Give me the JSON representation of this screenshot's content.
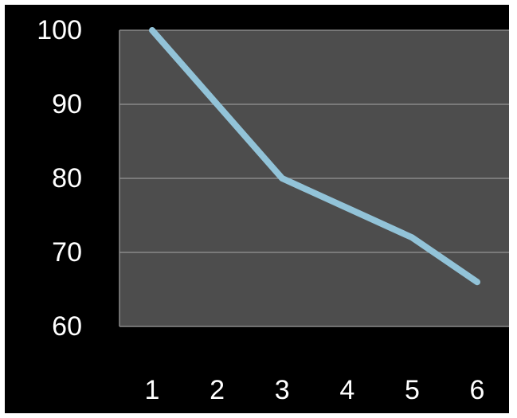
{
  "chart_data": {
    "type": "line",
    "title": "",
    "xlabel": "",
    "ylabel": "",
    "x": [
      1,
      2,
      3,
      4,
      5,
      6
    ],
    "x_tick_labels": [
      "1",
      "2",
      "3",
      "4",
      "5",
      "6"
    ],
    "y_tick_labels": [
      "100",
      "90",
      "80",
      "70",
      "60"
    ],
    "y_ticks": [
      100,
      90,
      80,
      70,
      60
    ],
    "ylim": [
      60,
      100
    ],
    "grid": true,
    "legend": "none",
    "series": [
      {
        "values": [
          100,
          90,
          80,
          76,
          72,
          66
        ],
        "color": "#92c3d8"
      }
    ],
    "colors": {
      "background": "#000000",
      "plot_area": "#4d4d4d",
      "gridline": "#8a8a8a",
      "text": "#ffffff"
    }
  }
}
